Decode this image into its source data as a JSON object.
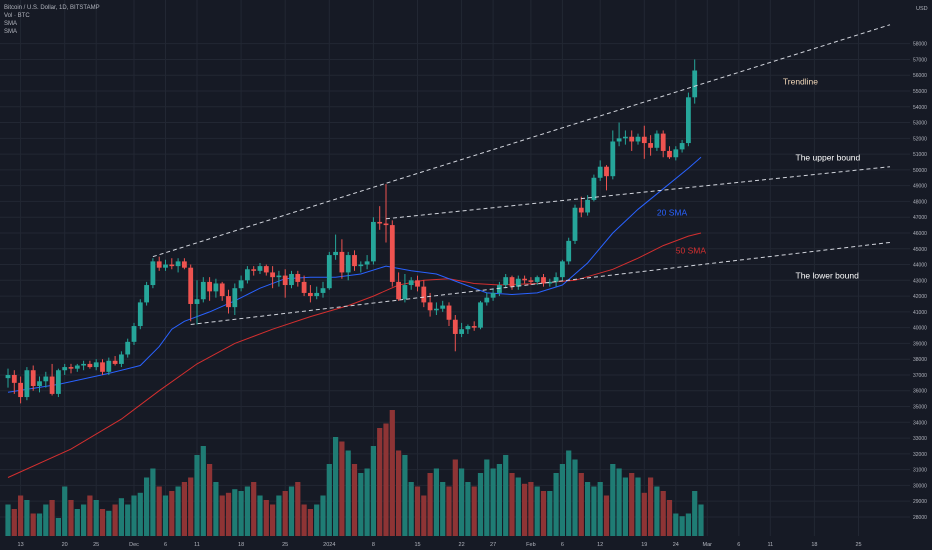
{
  "legend": {
    "title": "Bitcoin / U.S. Dollar, 1D, BITSTAMP",
    "vol": "Vol · BTC",
    "sma1": "SMA",
    "sma2": "SMA"
  },
  "chart_data": {
    "type": "candlestick",
    "currency_label": "USD",
    "ylim": [
      27300,
      59500
    ],
    "y_ticks": [
      28000,
      29000,
      30000,
      31000,
      32000,
      33000,
      34000,
      35000,
      36000,
      37000,
      38000,
      39000,
      40000,
      41000,
      42000,
      43000,
      44000,
      45000,
      46000,
      47000,
      48000,
      49000,
      50000,
      51000,
      52000,
      53000,
      54000,
      55000,
      56000,
      57000,
      58000
    ],
    "x_ticks": [
      {
        "i": 2,
        "label": "13"
      },
      {
        "i": 9,
        "label": "20"
      },
      {
        "i": 14,
        "label": "25"
      },
      {
        "i": 20,
        "label": "Dec"
      },
      {
        "i": 25,
        "label": "6"
      },
      {
        "i": 30,
        "label": "11"
      },
      {
        "i": 37,
        "label": "18"
      },
      {
        "i": 44,
        "label": "25"
      },
      {
        "i": 51,
        "label": "2024"
      },
      {
        "i": 58,
        "label": "8"
      },
      {
        "i": 65,
        "label": "15"
      },
      {
        "i": 72,
        "label": "22"
      },
      {
        "i": 77,
        "label": "27"
      },
      {
        "i": 83,
        "label": "Feb"
      },
      {
        "i": 88,
        "label": "6"
      },
      {
        "i": 94,
        "label": "12"
      },
      {
        "i": 101,
        "label": "19"
      },
      {
        "i": 106,
        "label": "24"
      },
      {
        "i": 111,
        "label": "Mar"
      },
      {
        "i": 116,
        "label": "6"
      },
      {
        "i": 121,
        "label": "11"
      },
      {
        "i": 128,
        "label": "18"
      },
      {
        "i": 135,
        "label": "25"
      }
    ],
    "colors": {
      "up": "#26a69a",
      "down": "#ef5350",
      "up_vol": "#1f7c74",
      "down_vol": "#8e3435",
      "sma20": "#2962ff",
      "sma50": "#d32f2f",
      "grid": "#222733",
      "axis_text": "#b2b5be",
      "line": "#d1d4dc"
    },
    "candles": [
      {
        "o": 36800,
        "h": 37400,
        "l": 36200,
        "c": 37000
      },
      {
        "o": 37000,
        "h": 37300,
        "l": 35800,
        "c": 36500
      },
      {
        "o": 36500,
        "h": 36900,
        "l": 35200,
        "c": 35600
      },
      {
        "o": 35600,
        "h": 37500,
        "l": 35400,
        "c": 37300
      },
      {
        "o": 37300,
        "h": 37600,
        "l": 36000,
        "c": 36300
      },
      {
        "o": 36300,
        "h": 36900,
        "l": 35900,
        "c": 36600
      },
      {
        "o": 36600,
        "h": 37200,
        "l": 36200,
        "c": 36900
      },
      {
        "o": 36900,
        "h": 37700,
        "l": 35700,
        "c": 35800
      },
      {
        "o": 35800,
        "h": 37400,
        "l": 35600,
        "c": 37300
      },
      {
        "o": 37300,
        "h": 37700,
        "l": 37000,
        "c": 37500
      },
      {
        "o": 37500,
        "h": 37700,
        "l": 37100,
        "c": 37400
      },
      {
        "o": 37400,
        "h": 37700,
        "l": 37200,
        "c": 37600
      },
      {
        "o": 37600,
        "h": 37900,
        "l": 37300,
        "c": 37700
      },
      {
        "o": 37700,
        "h": 37900,
        "l": 37400,
        "c": 37500
      },
      {
        "o": 37500,
        "h": 38000,
        "l": 37300,
        "c": 37800
      },
      {
        "o": 37800,
        "h": 38000,
        "l": 37000,
        "c": 37200
      },
      {
        "o": 37200,
        "h": 38100,
        "l": 37000,
        "c": 37900
      },
      {
        "o": 37900,
        "h": 38200,
        "l": 37600,
        "c": 37700
      },
      {
        "o": 37700,
        "h": 38500,
        "l": 37500,
        "c": 38300
      },
      {
        "o": 38300,
        "h": 39300,
        "l": 38100,
        "c": 39100
      },
      {
        "o": 39100,
        "h": 40300,
        "l": 38900,
        "c": 40100
      },
      {
        "o": 40100,
        "h": 41800,
        "l": 39900,
        "c": 41600
      },
      {
        "o": 41600,
        "h": 42900,
        "l": 41400,
        "c": 42700
      },
      {
        "o": 42700,
        "h": 44400,
        "l": 42500,
        "c": 44200
      },
      {
        "o": 44200,
        "h": 44500,
        "l": 43600,
        "c": 43800
      },
      {
        "o": 43800,
        "h": 44300,
        "l": 43600,
        "c": 44000
      },
      {
        "o": 44000,
        "h": 44400,
        "l": 43700,
        "c": 43900
      },
      {
        "o": 43900,
        "h": 44400,
        "l": 43500,
        "c": 44200
      },
      {
        "o": 44200,
        "h": 44400,
        "l": 43700,
        "c": 43800
      },
      {
        "o": 43800,
        "h": 44000,
        "l": 40400,
        "c": 41500
      },
      {
        "o": 41500,
        "h": 43000,
        "l": 40200,
        "c": 41800
      },
      {
        "o": 41800,
        "h": 43200,
        "l": 41600,
        "c": 42900
      },
      {
        "o": 42900,
        "h": 43200,
        "l": 41700,
        "c": 42300
      },
      {
        "o": 42300,
        "h": 43100,
        "l": 41900,
        "c": 42800
      },
      {
        "o": 42800,
        "h": 42900,
        "l": 41700,
        "c": 42000
      },
      {
        "o": 42000,
        "h": 42400,
        "l": 40900,
        "c": 41300
      },
      {
        "o": 41300,
        "h": 42800,
        "l": 40800,
        "c": 42500
      },
      {
        "o": 42500,
        "h": 43300,
        "l": 42300,
        "c": 43000
      },
      {
        "o": 43000,
        "h": 43900,
        "l": 42800,
        "c": 43700
      },
      {
        "o": 43700,
        "h": 43900,
        "l": 43300,
        "c": 43600
      },
      {
        "o": 43600,
        "h": 44100,
        "l": 43400,
        "c": 43900
      },
      {
        "o": 43900,
        "h": 44000,
        "l": 43300,
        "c": 43500
      },
      {
        "o": 43500,
        "h": 43900,
        "l": 42500,
        "c": 43200
      },
      {
        "o": 43200,
        "h": 43600,
        "l": 42600,
        "c": 43300
      },
      {
        "o": 43300,
        "h": 43700,
        "l": 41900,
        "c": 42700
      },
      {
        "o": 42700,
        "h": 43600,
        "l": 42500,
        "c": 43400
      },
      {
        "o": 43400,
        "h": 43600,
        "l": 42600,
        "c": 42900
      },
      {
        "o": 42900,
        "h": 43300,
        "l": 42000,
        "c": 42200
      },
      {
        "o": 42200,
        "h": 42700,
        "l": 41600,
        "c": 42000
      },
      {
        "o": 42000,
        "h": 42600,
        "l": 41800,
        "c": 42200
      },
      {
        "o": 42200,
        "h": 42900,
        "l": 41900,
        "c": 42500
      },
      {
        "o": 42500,
        "h": 44800,
        "l": 42400,
        "c": 44600
      },
      {
        "o": 44600,
        "h": 45900,
        "l": 44300,
        "c": 44800
      },
      {
        "o": 44800,
        "h": 45600,
        "l": 43100,
        "c": 43500
      },
      {
        "o": 43500,
        "h": 44800,
        "l": 43000,
        "c": 44600
      },
      {
        "o": 44600,
        "h": 44900,
        "l": 43600,
        "c": 43900
      },
      {
        "o": 43900,
        "h": 44200,
        "l": 43500,
        "c": 44000
      },
      {
        "o": 44000,
        "h": 44600,
        "l": 43700,
        "c": 44200
      },
      {
        "o": 44200,
        "h": 47000,
        "l": 44000,
        "c": 46700
      },
      {
        "o": 46700,
        "h": 47700,
        "l": 46200,
        "c": 46600
      },
      {
        "o": 46600,
        "h": 49100,
        "l": 45400,
        "c": 46500
      },
      {
        "o": 46500,
        "h": 46800,
        "l": 42600,
        "c": 42900
      },
      {
        "o": 42900,
        "h": 43500,
        "l": 41700,
        "c": 41800
      },
      {
        "o": 41800,
        "h": 43400,
        "l": 41600,
        "c": 42700
      },
      {
        "o": 42700,
        "h": 43200,
        "l": 42400,
        "c": 43000
      },
      {
        "o": 43000,
        "h": 43300,
        "l": 42300,
        "c": 42600
      },
      {
        "o": 42600,
        "h": 43000,
        "l": 41300,
        "c": 41600
      },
      {
        "o": 41600,
        "h": 42200,
        "l": 40700,
        "c": 41100
      },
      {
        "o": 41100,
        "h": 41600,
        "l": 40800,
        "c": 41200
      },
      {
        "o": 41200,
        "h": 41700,
        "l": 41000,
        "c": 41400
      },
      {
        "o": 41400,
        "h": 41600,
        "l": 40100,
        "c": 40500
      },
      {
        "o": 40500,
        "h": 40800,
        "l": 38500,
        "c": 39600
      },
      {
        "o": 39600,
        "h": 40300,
        "l": 39400,
        "c": 39900
      },
      {
        "o": 39900,
        "h": 40200,
        "l": 39600,
        "c": 40100
      },
      {
        "o": 40100,
        "h": 40400,
        "l": 39800,
        "c": 40000
      },
      {
        "o": 40000,
        "h": 41700,
        "l": 39900,
        "c": 41600
      },
      {
        "o": 41600,
        "h": 42200,
        "l": 41400,
        "c": 41900
      },
      {
        "o": 41900,
        "h": 42500,
        "l": 41700,
        "c": 42200
      },
      {
        "o": 42200,
        "h": 42900,
        "l": 42000,
        "c": 42700
      },
      {
        "o": 42700,
        "h": 43400,
        "l": 42500,
        "c": 43200
      },
      {
        "o": 43200,
        "h": 43300,
        "l": 42400,
        "c": 42600
      },
      {
        "o": 42600,
        "h": 43300,
        "l": 42400,
        "c": 43100
      },
      {
        "o": 43100,
        "h": 43300,
        "l": 42800,
        "c": 43000
      },
      {
        "o": 43000,
        "h": 43200,
        "l": 42700,
        "c": 42900
      },
      {
        "o": 42900,
        "h": 43300,
        "l": 42700,
        "c": 43200
      },
      {
        "o": 43200,
        "h": 43400,
        "l": 42600,
        "c": 42800
      },
      {
        "o": 42800,
        "h": 43100,
        "l": 42600,
        "c": 42900
      },
      {
        "o": 42900,
        "h": 43500,
        "l": 42600,
        "c": 43200
      },
      {
        "o": 43200,
        "h": 44300,
        "l": 43000,
        "c": 44200
      },
      {
        "o": 44200,
        "h": 45700,
        "l": 44000,
        "c": 45500
      },
      {
        "o": 45500,
        "h": 47800,
        "l": 45300,
        "c": 47600
      },
      {
        "o": 47600,
        "h": 48300,
        "l": 47000,
        "c": 47300
      },
      {
        "o": 47300,
        "h": 48400,
        "l": 47100,
        "c": 48100
      },
      {
        "o": 48100,
        "h": 49700,
        "l": 48000,
        "c": 49500
      },
      {
        "o": 49500,
        "h": 50600,
        "l": 49300,
        "c": 50200
      },
      {
        "o": 50200,
        "h": 50300,
        "l": 48700,
        "c": 49600
      },
      {
        "o": 49600,
        "h": 52500,
        "l": 49400,
        "c": 51800
      },
      {
        "o": 51800,
        "h": 53000,
        "l": 51500,
        "c": 52000
      },
      {
        "o": 52000,
        "h": 52500,
        "l": 51600,
        "c": 52100
      },
      {
        "o": 52100,
        "h": 52500,
        "l": 51200,
        "c": 51800
      },
      {
        "o": 51800,
        "h": 52300,
        "l": 51600,
        "c": 52100
      },
      {
        "o": 52100,
        "h": 52800,
        "l": 50700,
        "c": 51700
      },
      {
        "o": 51700,
        "h": 52200,
        "l": 50900,
        "c": 51400
      },
      {
        "o": 51400,
        "h": 52500,
        "l": 51200,
        "c": 52300
      },
      {
        "o": 52300,
        "h": 52500,
        "l": 50800,
        "c": 51200
      },
      {
        "o": 51200,
        "h": 51500,
        "l": 50700,
        "c": 50800
      },
      {
        "o": 50800,
        "h": 51500,
        "l": 50600,
        "c": 51300
      },
      {
        "o": 51300,
        "h": 51900,
        "l": 51100,
        "c": 51700
      },
      {
        "o": 51700,
        "h": 54900,
        "l": 51500,
        "c": 54600
      },
      {
        "o": 54600,
        "h": 57000,
        "l": 54200,
        "c": 56300
      }
    ],
    "volume": [
      35,
      30,
      45,
      40,
      25,
      25,
      35,
      40,
      20,
      55,
      40,
      30,
      35,
      45,
      40,
      30,
      28,
      35,
      42,
      35,
      45,
      48,
      65,
      75,
      55,
      45,
      50,
      55,
      60,
      65,
      90,
      100,
      80,
      60,
      45,
      48,
      52,
      50,
      55,
      60,
      45,
      40,
      35,
      45,
      50,
      55,
      60,
      35,
      30,
      35,
      45,
      80,
      110,
      105,
      95,
      80,
      70,
      75,
      100,
      120,
      125,
      140,
      95,
      90,
      60,
      55,
      45,
      70,
      75,
      60,
      55,
      85,
      75,
      60,
      55,
      70,
      85,
      75,
      80,
      90,
      70,
      65,
      58,
      60,
      55,
      50,
      50,
      70,
      80,
      95,
      85,
      70,
      60,
      55,
      60,
      45,
      80,
      75,
      65,
      70,
      65,
      48,
      65,
      55,
      50,
      40,
      25,
      22,
      25,
      50,
      35
    ],
    "volume_max": 150,
    "sma20": [
      [
        0,
        35900
      ],
      [
        8,
        36400
      ],
      [
        16,
        37100
      ],
      [
        21,
        37600
      ],
      [
        24,
        38800
      ],
      [
        26,
        39900
      ],
      [
        28,
        40400
      ],
      [
        32,
        41000
      ],
      [
        36,
        41700
      ],
      [
        40,
        42500
      ],
      [
        44,
        43100
      ],
      [
        48,
        43200
      ],
      [
        52,
        43200
      ],
      [
        56,
        43400
      ],
      [
        60,
        43900
      ],
      [
        64,
        43600
      ],
      [
        68,
        43400
      ],
      [
        72,
        42800
      ],
      [
        76,
        42200
      ],
      [
        80,
        42100
      ],
      [
        84,
        42200
      ],
      [
        88,
        42700
      ],
      [
        92,
        44100
      ],
      [
        96,
        46000
      ],
      [
        100,
        47500
      ],
      [
        104,
        48800
      ],
      [
        108,
        50100
      ],
      [
        110,
        50800
      ]
    ],
    "sma50": [
      [
        0,
        30500
      ],
      [
        10,
        32300
      ],
      [
        18,
        34200
      ],
      [
        24,
        36000
      ],
      [
        30,
        37700
      ],
      [
        36,
        39000
      ],
      [
        42,
        39900
      ],
      [
        48,
        40700
      ],
      [
        54,
        41400
      ],
      [
        58,
        42000
      ],
      [
        62,
        42700
      ],
      [
        66,
        43000
      ],
      [
        70,
        43100
      ],
      [
        74,
        42800
      ],
      [
        78,
        42700
      ],
      [
        84,
        42800
      ],
      [
        90,
        43000
      ],
      [
        96,
        43700
      ],
      [
        100,
        44400
      ],
      [
        104,
        45200
      ],
      [
        108,
        45800
      ],
      [
        110,
        46000
      ]
    ],
    "trend_lines": [
      {
        "name": "Trendline",
        "p1": [
          23,
          44500
        ],
        "p2": [
          140,
          59200
        ]
      },
      {
        "name": "The upper bound",
        "p1": [
          60,
          46900
        ],
        "p2": [
          140,
          50200
        ]
      },
      {
        "name": "The lower bound",
        "p1": [
          29,
          40200
        ],
        "p2": [
          140,
          45400
        ]
      }
    ],
    "annotations": [
      {
        "text": "Trendline",
        "i": 123,
        "y": 55400,
        "color": "#f0d6b7"
      },
      {
        "text": "The upper bound",
        "i": 125,
        "y": 50600,
        "color": "#ffffff"
      },
      {
        "text": "The lower bound",
        "i": 125,
        "y": 43100,
        "color": "#ffffff"
      },
      {
        "text": "20 SMA",
        "i": 103,
        "y": 47100,
        "color": "#2962ff"
      },
      {
        "text": "50 SMA",
        "i": 106,
        "y": 44700,
        "color": "#d32f2f"
      }
    ]
  }
}
